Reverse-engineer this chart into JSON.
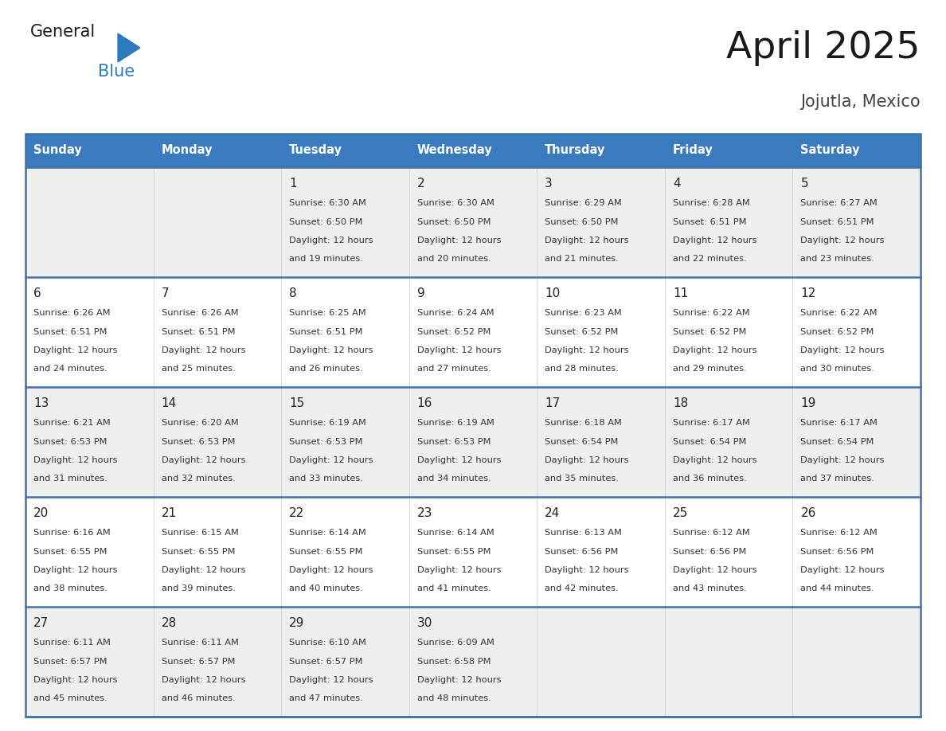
{
  "title": "April 2025",
  "subtitle": "Jojutla, Mexico",
  "header_bg": "#3a7abf",
  "header_text_color": "#ffffff",
  "weekdays": [
    "Sunday",
    "Monday",
    "Tuesday",
    "Wednesday",
    "Thursday",
    "Friday",
    "Saturday"
  ],
  "row_bg_even": "#efefef",
  "row_bg_odd": "#ffffff",
  "separator_color": "#4472a8",
  "day_number_color": "#222222",
  "cell_text_color": "#333333",
  "calendar": [
    [
      {
        "day": "",
        "sunrise": "",
        "sunset": "",
        "daylight_min": 0
      },
      {
        "day": "",
        "sunrise": "",
        "sunset": "",
        "daylight_min": 0
      },
      {
        "day": "1",
        "sunrise": "6:30 AM",
        "sunset": "6:50 PM",
        "daylight_min": 19
      },
      {
        "day": "2",
        "sunrise": "6:30 AM",
        "sunset": "6:50 PM",
        "daylight_min": 20
      },
      {
        "day": "3",
        "sunrise": "6:29 AM",
        "sunset": "6:50 PM",
        "daylight_min": 21
      },
      {
        "day": "4",
        "sunrise": "6:28 AM",
        "sunset": "6:51 PM",
        "daylight_min": 22
      },
      {
        "day": "5",
        "sunrise": "6:27 AM",
        "sunset": "6:51 PM",
        "daylight_min": 23
      }
    ],
    [
      {
        "day": "6",
        "sunrise": "6:26 AM",
        "sunset": "6:51 PM",
        "daylight_min": 24
      },
      {
        "day": "7",
        "sunrise": "6:26 AM",
        "sunset": "6:51 PM",
        "daylight_min": 25
      },
      {
        "day": "8",
        "sunrise": "6:25 AM",
        "sunset": "6:51 PM",
        "daylight_min": 26
      },
      {
        "day": "9",
        "sunrise": "6:24 AM",
        "sunset": "6:52 PM",
        "daylight_min": 27
      },
      {
        "day": "10",
        "sunrise": "6:23 AM",
        "sunset": "6:52 PM",
        "daylight_min": 28
      },
      {
        "day": "11",
        "sunrise": "6:22 AM",
        "sunset": "6:52 PM",
        "daylight_min": 29
      },
      {
        "day": "12",
        "sunrise": "6:22 AM",
        "sunset": "6:52 PM",
        "daylight_min": 30
      }
    ],
    [
      {
        "day": "13",
        "sunrise": "6:21 AM",
        "sunset": "6:53 PM",
        "daylight_min": 31
      },
      {
        "day": "14",
        "sunrise": "6:20 AM",
        "sunset": "6:53 PM",
        "daylight_min": 32
      },
      {
        "day": "15",
        "sunrise": "6:19 AM",
        "sunset": "6:53 PM",
        "daylight_min": 33
      },
      {
        "day": "16",
        "sunrise": "6:19 AM",
        "sunset": "6:53 PM",
        "daylight_min": 34
      },
      {
        "day": "17",
        "sunrise": "6:18 AM",
        "sunset": "6:54 PM",
        "daylight_min": 35
      },
      {
        "day": "18",
        "sunrise": "6:17 AM",
        "sunset": "6:54 PM",
        "daylight_min": 36
      },
      {
        "day": "19",
        "sunrise": "6:17 AM",
        "sunset": "6:54 PM",
        "daylight_min": 37
      }
    ],
    [
      {
        "day": "20",
        "sunrise": "6:16 AM",
        "sunset": "6:55 PM",
        "daylight_min": 38
      },
      {
        "day": "21",
        "sunrise": "6:15 AM",
        "sunset": "6:55 PM",
        "daylight_min": 39
      },
      {
        "day": "22",
        "sunrise": "6:14 AM",
        "sunset": "6:55 PM",
        "daylight_min": 40
      },
      {
        "day": "23",
        "sunrise": "6:14 AM",
        "sunset": "6:55 PM",
        "daylight_min": 41
      },
      {
        "day": "24",
        "sunrise": "6:13 AM",
        "sunset": "6:56 PM",
        "daylight_min": 42
      },
      {
        "day": "25",
        "sunrise": "6:12 AM",
        "sunset": "6:56 PM",
        "daylight_min": 43
      },
      {
        "day": "26",
        "sunrise": "6:12 AM",
        "sunset": "6:56 PM",
        "daylight_min": 44
      }
    ],
    [
      {
        "day": "27",
        "sunrise": "6:11 AM",
        "sunset": "6:57 PM",
        "daylight_min": 45
      },
      {
        "day": "28",
        "sunrise": "6:11 AM",
        "sunset": "6:57 PM",
        "daylight_min": 46
      },
      {
        "day": "29",
        "sunrise": "6:10 AM",
        "sunset": "6:57 PM",
        "daylight_min": 47
      },
      {
        "day": "30",
        "sunrise": "6:09 AM",
        "sunset": "6:58 PM",
        "daylight_min": 48
      },
      {
        "day": "",
        "sunrise": "",
        "sunset": "",
        "daylight_min": 0
      },
      {
        "day": "",
        "sunrise": "",
        "sunset": "",
        "daylight_min": 0
      },
      {
        "day": "",
        "sunrise": "",
        "sunset": "",
        "daylight_min": 0
      }
    ]
  ],
  "fig_width": 11.88,
  "fig_height": 9.18,
  "dpi": 100
}
